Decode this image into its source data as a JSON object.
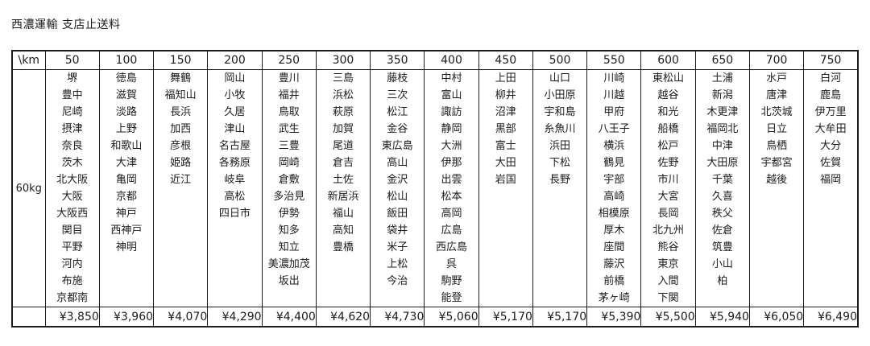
{
  "page": {
    "title": "西濃運輸 支店止送料"
  },
  "table": {
    "corner_header": "\\km",
    "row_label": "60kg",
    "columns": [
      {
        "km": "50",
        "price": "¥3,850",
        "cities": [
          "堺",
          "豊中",
          "尼崎",
          "摂津",
          "奈良",
          "茨木",
          "北大阪",
          "大阪",
          "大阪西",
          "関目",
          "平野",
          "河内",
          "布施",
          "京都南"
        ]
      },
      {
        "km": "100",
        "price": "¥3,960",
        "cities": [
          "徳島",
          "滋賀",
          "淡路",
          "上野",
          "和歌山",
          "大津",
          "亀岡",
          "京都",
          "神戸",
          "西神戸",
          "神明"
        ]
      },
      {
        "km": "150",
        "price": "¥4,070",
        "cities": [
          "舞鶴",
          "福知山",
          "長浜",
          "加西",
          "彦根",
          "姫路",
          "近江"
        ]
      },
      {
        "km": "200",
        "price": "¥4,290",
        "cities": [
          "岡山",
          "小牧",
          "久居",
          "津山",
          "名古屋",
          "各務原",
          "岐阜",
          "高松",
          "四日市"
        ]
      },
      {
        "km": "250",
        "price": "¥4,400",
        "cities": [
          "豊川",
          "福井",
          "鳥取",
          "武生",
          "三豊",
          "岡崎",
          "倉敷",
          "多治見",
          "伊勢",
          "知多",
          "知立",
          "美濃加茂",
          "坂出"
        ]
      },
      {
        "km": "300",
        "price": "¥4,620",
        "cities": [
          "三島",
          "浜松",
          "萩原",
          "加賀",
          "尾道",
          "倉吉",
          "土佐",
          "新居浜",
          "福山",
          "高知",
          "豊橋"
        ]
      },
      {
        "km": "350",
        "price": "¥4,730",
        "cities": [
          "藤枝",
          "三次",
          "松江",
          "金谷",
          "東広島",
          "高山",
          "金沢",
          "松山",
          "飯田",
          "袋井",
          "米子",
          "上松",
          "今治"
        ]
      },
      {
        "km": "400",
        "price": "¥5,060",
        "cities": [
          "中村",
          "富山",
          "諏訪",
          "静岡",
          "大洲",
          "伊那",
          "出雲",
          "松本",
          "高岡",
          "広島",
          "西広島",
          "呉",
          "駒野",
          "能登"
        ]
      },
      {
        "km": "450",
        "price": "¥5,170",
        "cities": [
          "上田",
          "柳井",
          "沼津",
          "黒部",
          "富士",
          "大田",
          "岩国"
        ]
      },
      {
        "km": "500",
        "price": "¥5,170",
        "cities": [
          "山口",
          "小田原",
          "宇和島",
          "糸魚川",
          "浜田",
          "下松",
          "長野"
        ]
      },
      {
        "km": "550",
        "price": "¥5,390",
        "cities": [
          "川崎",
          "川越",
          "甲府",
          "八王子",
          "横浜",
          "鶴見",
          "宇部",
          "高崎",
          "相模原",
          "厚木",
          "座間",
          "藤沢",
          "前橋",
          "茅ヶ崎"
        ]
      },
      {
        "km": "600",
        "price": "¥5,500",
        "cities": [
          "東松山",
          "越谷",
          "和光",
          "船橋",
          "松戸",
          "佐野",
          "市川",
          "大宮",
          "長岡",
          "北九州",
          "熊谷",
          "東京",
          "入間",
          "下関"
        ]
      },
      {
        "km": "650",
        "price": "¥5,940",
        "cities": [
          "土浦",
          "新潟",
          "木更津",
          "福岡北",
          "中津",
          "大田原",
          "千葉",
          "久喜",
          "秩父",
          "佐倉",
          "筑豊",
          "小山",
          "柏"
        ]
      },
      {
        "km": "700",
        "price": "¥6,050",
        "cities": [
          "水戸",
          "唐津",
          "北茨城",
          "日立",
          "鳥栖",
          "宇都宮",
          "越後"
        ]
      },
      {
        "km": "750",
        "price": "¥6,490",
        "cities": [
          "白河",
          "鹿島",
          "伊万里",
          "大牟田",
          "大分",
          "佐賀",
          "福岡"
        ]
      }
    ]
  }
}
